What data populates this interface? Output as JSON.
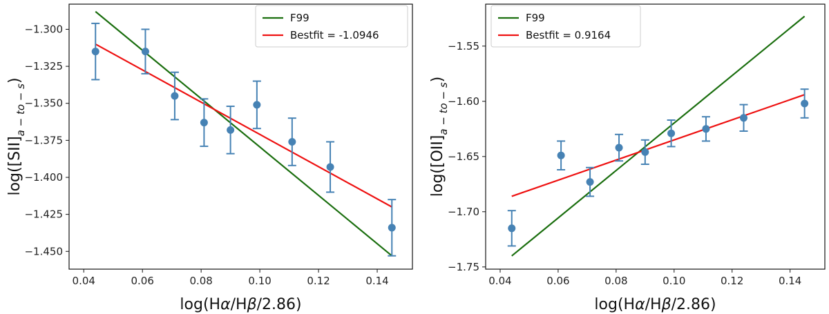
{
  "chart_data": [
    {
      "type": "scatter",
      "xlabel_parts": [
        "log(H",
        "α",
        "/H",
        "β",
        "/2.86)"
      ],
      "ylabel_parts": [
        "log([SII]",
        "a − to − s",
        ")"
      ],
      "xlim": [
        0.035,
        0.152
      ],
      "ylim": [
        -1.462,
        -1.283
      ],
      "xticks": [
        0.04,
        0.06,
        0.08,
        0.1,
        0.12,
        0.14
      ],
      "xtick_labels": [
        "0.04",
        "0.06",
        "0.08",
        "0.10",
        "0.12",
        "0.14"
      ],
      "yticks": [
        -1.3,
        -1.325,
        -1.35,
        -1.375,
        -1.4,
        -1.425,
        -1.45
      ],
      "ytick_labels": [
        "−1.300",
        "−1.325",
        "−1.350",
        "−1.375",
        "−1.400",
        "−1.425",
        "−1.450"
      ],
      "points": [
        {
          "x": 0.044,
          "y": -1.315,
          "err": 0.019
        },
        {
          "x": 0.061,
          "y": -1.315,
          "err": 0.015
        },
        {
          "x": 0.071,
          "y": -1.345,
          "err": 0.016
        },
        {
          "x": 0.081,
          "y": -1.363,
          "err": 0.016
        },
        {
          "x": 0.09,
          "y": -1.368,
          "err": 0.016
        },
        {
          "x": 0.099,
          "y": -1.351,
          "err": 0.016
        },
        {
          "x": 0.111,
          "y": -1.376,
          "err": 0.016
        },
        {
          "x": 0.124,
          "y": -1.393,
          "err": 0.017
        },
        {
          "x": 0.145,
          "y": -1.434,
          "err": 0.019
        }
      ],
      "lines": [
        {
          "name": "F99",
          "color": "#1a6e0e",
          "x": [
            0.044,
            0.145
          ],
          "y": [
            -1.288,
            -1.453
          ]
        },
        {
          "name": "Bestfit = -1.0946",
          "color": "#ee1111",
          "x": [
            0.044,
            0.145
          ],
          "y": [
            -1.31,
            -1.42
          ]
        }
      ],
      "marker_color": "#4682b4",
      "legend_loc": "upper-right"
    },
    {
      "type": "scatter",
      "xlabel_parts": [
        "log(H",
        "α",
        "/H",
        "β",
        "/2.86)"
      ],
      "ylabel_parts": [
        "log([OII]",
        "a − to − s",
        ")"
      ],
      "xlim": [
        0.035,
        0.152
      ],
      "ylim": [
        -1.752,
        -1.512
      ],
      "xticks": [
        0.04,
        0.06,
        0.08,
        0.1,
        0.12,
        0.14
      ],
      "xtick_labels": [
        "0.04",
        "0.06",
        "0.08",
        "0.10",
        "0.12",
        "0.14"
      ],
      "yticks": [
        -1.55,
        -1.6,
        -1.65,
        -1.7,
        -1.75
      ],
      "ytick_labels": [
        "−1.55",
        "−1.60",
        "−1.65",
        "−1.70",
        "−1.75"
      ],
      "points": [
        {
          "x": 0.044,
          "y": -1.715,
          "err": 0.016
        },
        {
          "x": 0.061,
          "y": -1.649,
          "err": 0.013
        },
        {
          "x": 0.071,
          "y": -1.673,
          "err": 0.013
        },
        {
          "x": 0.081,
          "y": -1.642,
          "err": 0.012
        },
        {
          "x": 0.09,
          "y": -1.646,
          "err": 0.011
        },
        {
          "x": 0.099,
          "y": -1.629,
          "err": 0.012
        },
        {
          "x": 0.111,
          "y": -1.625,
          "err": 0.011
        },
        {
          "x": 0.124,
          "y": -1.615,
          "err": 0.012
        },
        {
          "x": 0.145,
          "y": -1.602,
          "err": 0.013
        }
      ],
      "lines": [
        {
          "name": "F99",
          "color": "#1a6e0e",
          "x": [
            0.044,
            0.145
          ],
          "y": [
            -1.74,
            -1.523
          ]
        },
        {
          "name": "Bestfit = 0.9164",
          "color": "#ee1111",
          "x": [
            0.044,
            0.145
          ],
          "y": [
            -1.686,
            -1.594
          ]
        }
      ],
      "marker_color": "#4682b4",
      "legend_loc": "upper-left"
    }
  ]
}
